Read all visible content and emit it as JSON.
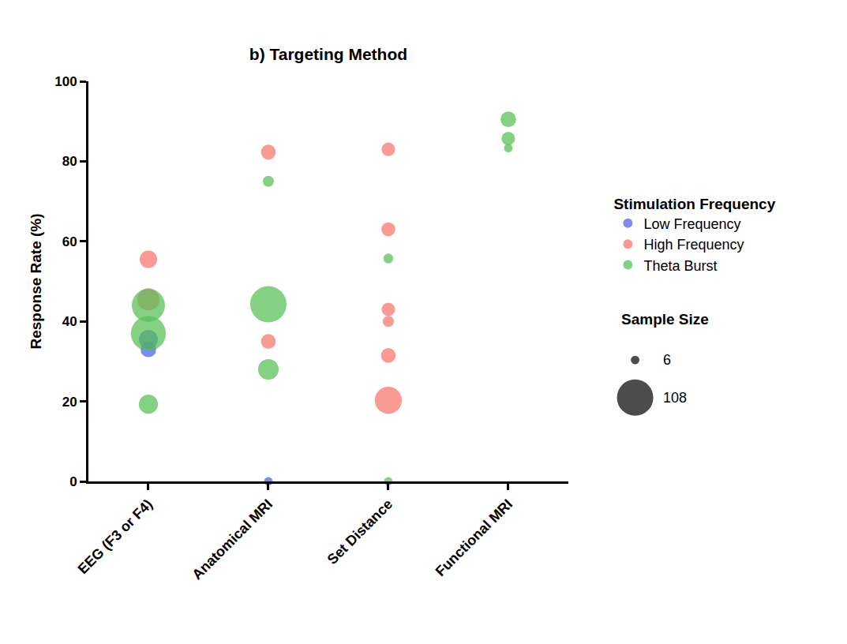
{
  "chart_data": {
    "type": "scatter",
    "marker": "bubble",
    "title": "b) Targeting Method",
    "y_label": "Response Rate (%)",
    "categories": [
      "Set Distance",
      "EEG (F3 or F4)",
      "Anatomical MRI",
      "Functional MRI"
    ],
    "ylim": [
      0,
      100
    ],
    "yticks": [
      0,
      20,
      40,
      60,
      80,
      100
    ],
    "grid": false,
    "legend_title": "Stimulation Frequency",
    "size_legend": {
      "title": "Sample Size",
      "values": [
        6,
        108
      ]
    },
    "series": [
      {
        "name": "Low Frequency",
        "color": "#4a5ee8",
        "x": [
          "EEG (F3 or F4)",
          "EEG (F3 or F4)",
          "Anatomical MRI"
        ],
        "values": [
          35.5,
          33,
          0
        ],
        "sizes": [
          30,
          20,
          6
        ]
      },
      {
        "name": "High Frequency",
        "color": "#f7746b",
        "x": [
          "Set Distance",
          "Set Distance",
          "Set Distance",
          "Set Distance",
          "Set Distance",
          "Set Distance",
          "EEG (F3 or F4)",
          "EEG (F3 or F4)",
          "Anatomical MRI",
          "Anatomical MRI"
        ],
        "values": [
          83,
          63,
          43,
          40,
          31.5,
          20.3,
          55.5,
          45.5,
          82.3,
          35
        ],
        "sizes": [
          15,
          16,
          15,
          10,
          18,
          60,
          25,
          40,
          18,
          18
        ]
      },
      {
        "name": "Theta Burst",
        "color": "#55bf55",
        "x": [
          "Set Distance",
          "Set Distance",
          "EEG (F3 or F4)",
          "EEG (F3 or F4)",
          "EEG (F3 or F4)",
          "Anatomical MRI",
          "Anatomical MRI",
          "Anatomical MRI",
          "Functional MRI",
          "Functional MRI",
          "Functional MRI"
        ],
        "values": [
          55.7,
          0,
          44,
          37,
          19.3,
          75,
          44.3,
          28,
          90.5,
          85.7,
          83.3
        ],
        "sizes": [
          8,
          6,
          90,
          100,
          30,
          10,
          108,
          35,
          20,
          15,
          6
        ]
      }
    ]
  }
}
